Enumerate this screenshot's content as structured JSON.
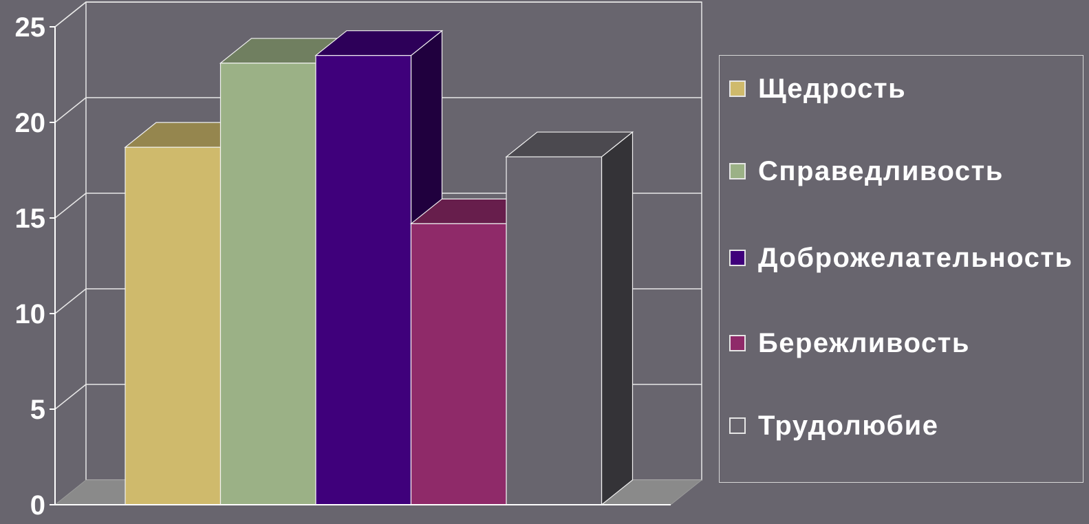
{
  "chart_data": {
    "type": "bar",
    "title": "",
    "xlabel": "",
    "ylabel": "",
    "ylim": [
      0,
      25
    ],
    "yticks": [
      0,
      5,
      10,
      15,
      20,
      25
    ],
    "grid": true,
    "legend_position": "right",
    "series": [
      {
        "name": "Щедрость",
        "value": 18.7,
        "color": "#cfba6c"
      },
      {
        "name": "Справедливость",
        "value": 23.1,
        "color": "#9bb186"
      },
      {
        "name": "Доброжелательность",
        "value": 23.5,
        "color": "#3f007b"
      },
      {
        "name": "Бережливость",
        "value": 14.7,
        "color": "#8f2a69"
      },
      {
        "name": "Трудолюбие",
        "value": 18.2,
        "color": "#68656e"
      }
    ]
  },
  "legend": {
    "items": [
      {
        "label": "Щедрость",
        "color": "#cfba6c"
      },
      {
        "label": "Справедливость",
        "color": "#9bb186"
      },
      {
        "label": "Доброжелательность",
        "color": "#3f007b"
      },
      {
        "label": "Бережливость",
        "color": "#8f2a69"
      },
      {
        "label": "Трудолюбие",
        "color": "#68656e"
      }
    ]
  }
}
